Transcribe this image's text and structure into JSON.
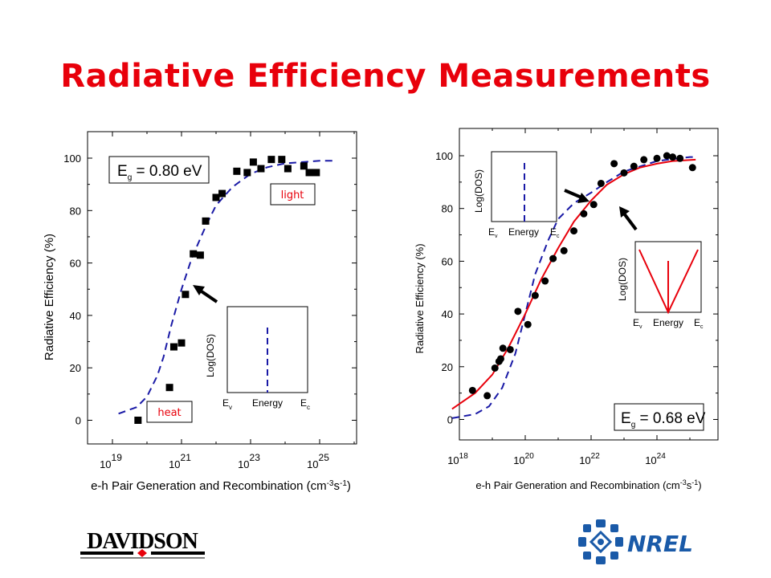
{
  "title": "Radiative Efficiency Measurements",
  "colors": {
    "title": "#e8000b",
    "dashed": "#1a1aa6",
    "solid": "#e8000b",
    "markers": "#000000"
  },
  "chart_data": [
    {
      "type": "scatter",
      "panel": "left",
      "ylabel": "Radiative Efficiency (%)",
      "xlabel": "e-h Pair Generation and Recombination (cm^-3 s^-1)",
      "x_scale": "log",
      "xlim": [
        1e+18,
        1e+26
      ],
      "ylim": [
        -8,
        106
      ],
      "yticks": [
        0,
        20,
        40,
        60,
        80,
        100
      ],
      "xticks": [
        "10^19",
        "10^21",
        "10^23",
        "10^25"
      ],
      "grid": false,
      "marker": "square",
      "eg_label": "Eg = 0.80 eV",
      "badges": {
        "upper": "light",
        "lower": "heat"
      },
      "inset": {
        "ylabel": "Log(DOS)",
        "xlabel": "Energy",
        "left": "Ev",
        "right": "Ec",
        "dos": "delta"
      },
      "series": [
        {
          "style": "scatter",
          "x": [
            5.5e+19,
            1.6e+20,
            2.1e+20,
            4.5e+20,
            6e+20,
            1e+21,
            1.3e+21,
            2.2e+21,
            3.5e+21,
            5e+21,
            1e+22,
            1.5e+22,
            4e+22,
            8e+22,
            1.2e+23,
            2e+23,
            4e+23,
            8e+23,
            1.2e+24,
            3.5e+24,
            5e+24,
            8e+24
          ],
          "y": [
            0,
            0.5,
            2,
            12.5,
            28,
            29.5,
            48,
            63.5,
            63,
            76,
            85,
            86.5,
            95,
            94.5,
            98.5,
            96,
            99.5,
            99.5,
            96,
            97,
            94.5,
            94.5
          ]
        },
        {
          "style": "dashed",
          "x": [
            1.5e+19,
            5e+19,
            1e+20,
            2e+20,
            3e+20,
            5e+20,
            1e+21,
            2e+21,
            5e+21,
            1e+22,
            3e+22,
            1e+23,
            3e+23,
            1e+24,
            1e+25,
            3e+25
          ],
          "y": [
            2.5,
            5,
            9,
            17,
            24,
            36,
            50,
            62,
            74,
            82,
            89,
            94,
            96.5,
            98,
            99,
            99
          ]
        }
      ]
    },
    {
      "type": "scatter",
      "panel": "right",
      "ylabel": "Radiative Efficiency (%)",
      "xlabel": "e-h Pair Generation and Recombination (cm^-3 s^-1)",
      "x_scale": "log",
      "xlim": [
        3e+17,
        3e+25
      ],
      "ylim": [
        -8,
        106
      ],
      "yticks": [
        0,
        20,
        40,
        60,
        80,
        100
      ],
      "xticks": [
        "10^18",
        "10^20",
        "10^22",
        "10^24"
      ],
      "grid": false,
      "marker": "circle",
      "eg_label": "Eg = 0.68 eV",
      "insets": [
        {
          "ylabel": "Log(DOS)",
          "xlabel": "Energy",
          "left": "Ev",
          "right": "Ec",
          "dos": "delta"
        },
        {
          "ylabel": "Log(DOS)",
          "xlabel": "Energy",
          "left": "Ev",
          "right": "Ec",
          "dos": "continuum"
        }
      ],
      "series": [
        {
          "style": "scatter",
          "x": [
            2.5e+18,
            7e+18,
            1.2e+19,
            1.6e+19,
            1.8e+19,
            2.1e+19,
            3.5e+19,
            6e+19,
            1.2e+20,
            2e+20,
            4e+20,
            7e+20,
            1.5e+21,
            3e+21,
            6e+21,
            1.2e+22,
            2e+22,
            5e+22,
            1e+23,
            2e+23,
            4e+23,
            1e+24,
            2e+24,
            3e+24,
            5e+24,
            1.2e+25
          ],
          "y": [
            11,
            9,
            19.5,
            22,
            23,
            27,
            26.5,
            41,
            36,
            47,
            52.5,
            61,
            64,
            71.5,
            78,
            81.5,
            89.5,
            97,
            93.5,
            96,
            98.5,
            99,
            100,
            99.5,
            99,
            95.5
          ]
        },
        {
          "style": "dashed",
          "x": [
            6e+17,
            3e+18,
            8e+18,
            2e+19,
            5e+19,
            1e+20,
            2e+20,
            5e+20,
            1e+21,
            3e+21,
            1e+22,
            3e+22,
            1e+23,
            1e+24,
            1e+25,
            1.5e+25
          ],
          "y": [
            0.5,
            2,
            5,
            12,
            25,
            40,
            55,
            68,
            76,
            82,
            86,
            90,
            94,
            98,
            99.5,
            99.5
          ]
        },
        {
          "style": "solid",
          "x": [
            6e+17,
            3e+18,
            1e+19,
            3e+19,
            1e+20,
            3e+20,
            1e+21,
            3e+21,
            1e+22,
            3e+22,
            1e+23,
            3e+23,
            1e+24,
            3e+24,
            1.5e+25
          ],
          "y": [
            4,
            10,
            17,
            27,
            40,
            53,
            65,
            75,
            83,
            89,
            93,
            95.5,
            97,
            98,
            98.5
          ]
        }
      ]
    }
  ]
}
